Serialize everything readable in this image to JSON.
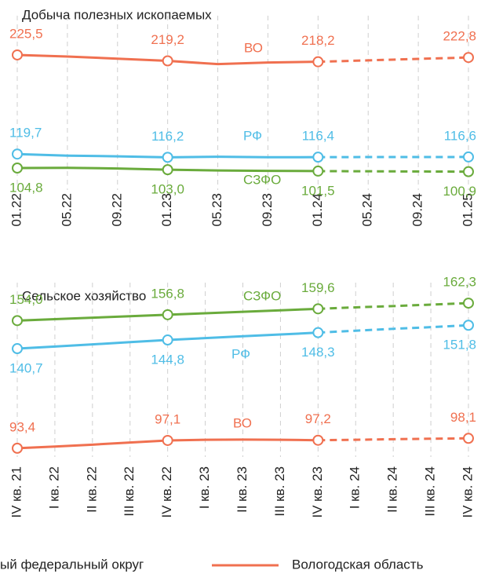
{
  "chart_data": [
    {
      "type": "line",
      "title": "Добыча полезных ископаемых",
      "categories": [
        "01.22",
        "05.22",
        "09.22",
        "01.23",
        "05.23",
        "09.23",
        "01.24",
        "05.24",
        "09.24",
        "01.25"
      ],
      "dashed_from": "01.24",
      "ylim": [
        83,
        259
      ],
      "grid": true,
      "series": [
        {
          "name": "ВО",
          "color": "#f07050",
          "label_pos": "above",
          "values": [
            225.5,
            223.8,
            221.5,
            219.2,
            215.7,
            217.4,
            218.2,
            219.7,
            221.3,
            222.8
          ],
          "value_labels": [
            "225,5",
            null,
            null,
            "219,2",
            null,
            null,
            "218,2",
            null,
            null,
            "222,8"
          ]
        },
        {
          "name": "РФ",
          "color": "#4fbde6",
          "label_pos": "above",
          "values": [
            119.7,
            118.0,
            117.3,
            116.2,
            116.8,
            116.3,
            116.4,
            116.5,
            116.5,
            116.6
          ],
          "value_labels": [
            "119,7",
            null,
            null,
            "116,2",
            null,
            null,
            "116,4",
            null,
            null,
            "116,6"
          ]
        },
        {
          "name": "СЗФО",
          "color": "#6aab3c",
          "label_pos": "below",
          "values": [
            104.8,
            105.0,
            104.3,
            103.0,
            102.2,
            101.8,
            101.5,
            101.3,
            101.1,
            100.9
          ],
          "value_labels": [
            "104,8",
            null,
            null,
            "103,0",
            null,
            null,
            "101,5",
            null,
            null,
            "100,9"
          ]
        }
      ]
    },
    {
      "type": "line",
      "title": "Сельское хозяйство",
      "categories": [
        "IV кв. 21",
        "I кв. 22",
        "II кв. 22",
        "III кв. 22",
        "IV кв. 22",
        "I кв. 23",
        "II кв. 23",
        "III кв. 23",
        "IV кв. 23",
        "I кв. 24",
        "II кв. 24",
        "III кв. 24",
        "IV кв. 24"
      ],
      "dashed_from": "IV кв. 23",
      "ylim": [
        90,
        168.3
      ],
      "grid": true,
      "series": [
        {
          "name": "СЗФО",
          "color": "#6aab3c",
          "label_pos": "above",
          "values": [
            154.0,
            154.7,
            155.4,
            156.1,
            156.8,
            157.5,
            158.2,
            158.9,
            159.6,
            160.3,
            160.9,
            161.6,
            162.3
          ],
          "value_labels": [
            "154,0",
            null,
            null,
            null,
            "156,8",
            null,
            null,
            null,
            "159,6",
            null,
            null,
            null,
            "162,3"
          ]
        },
        {
          "name": "РФ",
          "color": "#4fbde6",
          "label_pos": "below",
          "values": [
            140.7,
            141.7,
            142.7,
            143.8,
            144.8,
            145.7,
            146.6,
            147.4,
            148.3,
            149.2,
            150.1,
            150.9,
            151.8
          ],
          "value_labels": [
            "140,7",
            null,
            null,
            null,
            "144,8",
            null,
            null,
            null,
            "148,3",
            null,
            null,
            null,
            "151,8"
          ]
        },
        {
          "name": "ВО",
          "color": "#f07050",
          "label_pos": "above",
          "values": [
            93.4,
            94.2,
            95.1,
            96.1,
            97.1,
            97.4,
            97.5,
            97.4,
            97.2,
            97.4,
            97.7,
            97.9,
            98.1
          ],
          "value_labels": [
            "93,4",
            null,
            null,
            null,
            "97,1",
            null,
            null,
            null,
            "97,2",
            null,
            null,
            null,
            "98,1"
          ]
        }
      ]
    }
  ],
  "legend": [
    {
      "label": "ый федеральный округ",
      "color": "#6aab3c"
    },
    {
      "label": "Вологодская область",
      "color": "#f07050"
    }
  ]
}
